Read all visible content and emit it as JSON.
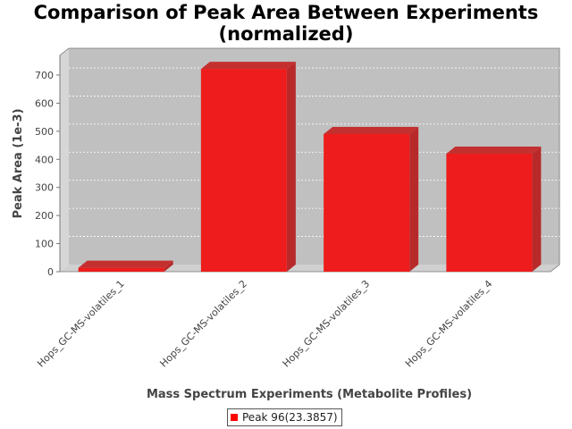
{
  "chart_data": {
    "type": "bar",
    "title_line1": "Comparison of Peak Area Between Experiments",
    "title_line2": "(normalized)",
    "xlabel": "Mass Spectrum Experiments (Metabolite Profiles)",
    "ylabel": "Peak Area (1e-3)",
    "categories": [
      "Hops_GC-MS-volatiles_1",
      "Hops_GC-MS-volatiles_2",
      "Hops_GC-MS-volatiles_3",
      "Hops_GC-MS-volatiles_4"
    ],
    "series": [
      {
        "name": "Peak 96(23.3857)",
        "values": [
          14,
          722,
          490,
          420
        ],
        "color": "#ee1c1c"
      }
    ],
    "yticks": [
      "0",
      "100",
      "200",
      "300",
      "400",
      "500",
      "600",
      "700"
    ],
    "ylim": [
      0,
      770
    ],
    "grid": true,
    "legend": "bottom-center",
    "plot_background": "#c0c0c0"
  }
}
